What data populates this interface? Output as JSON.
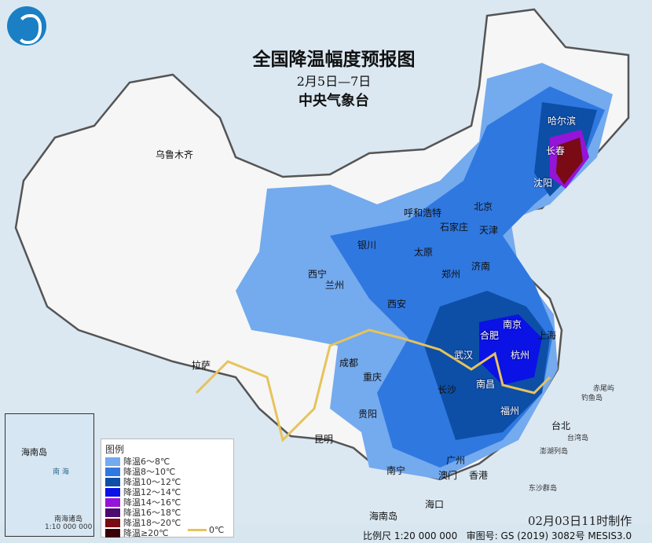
{
  "header": {
    "title": "全国降温幅度预报图",
    "date_range": "2月5日—7日",
    "issuer": "中央气象台",
    "logo": "cma-logo"
  },
  "cities": [
    "乌鲁木齐",
    "哈尔滨",
    "长春",
    "沈阳",
    "北京",
    "天津",
    "呼和浩特",
    "石家庄",
    "太原",
    "济南",
    "银川",
    "西宁",
    "兰州",
    "郑州",
    "西安",
    "南京",
    "合肥",
    "上海",
    "杭州",
    "武汉",
    "南昌",
    "长沙",
    "成都",
    "重庆",
    "拉萨",
    "贵阳",
    "昆明",
    "福州",
    "台北",
    "南宁",
    "广州",
    "澳门",
    "香港",
    "海口",
    "海南岛"
  ],
  "islands": [
    "赤尾屿",
    "钓鱼岛",
    "台湾岛",
    "澎湖列岛",
    "东沙群岛"
  ],
  "inset": {
    "island": "海南岛",
    "sea": "南 海",
    "label": "南海诸岛",
    "scale": "1:10 000 000"
  },
  "legend": {
    "title": "图例",
    "items": [
      {
        "label": "降温6～8℃",
        "color": "#74aaee"
      },
      {
        "label": "降温8～10℃",
        "color": "#2f78e0"
      },
      {
        "label": "降温10～12℃",
        "color": "#0d4fa6"
      },
      {
        "label": "降温12～14℃",
        "color": "#0a12e6"
      },
      {
        "label": "降温14～16℃",
        "color": "#9414d8"
      },
      {
        "label": "降温16～18℃",
        "color": "#4b0a6e"
      },
      {
        "label": "降温18～20℃",
        "color": "#7a0a14"
      },
      {
        "label": "降温≥20℃",
        "color": "#3a0008"
      }
    ],
    "zero_line": {
      "label": "0℃",
      "color": "#e7c35a"
    }
  },
  "footer": {
    "made_time": "02月03日11时制作",
    "scale": "比例尺 1:20 000 000",
    "approval": "审图号: GS (2019) 3082号 MESIS3.0"
  }
}
